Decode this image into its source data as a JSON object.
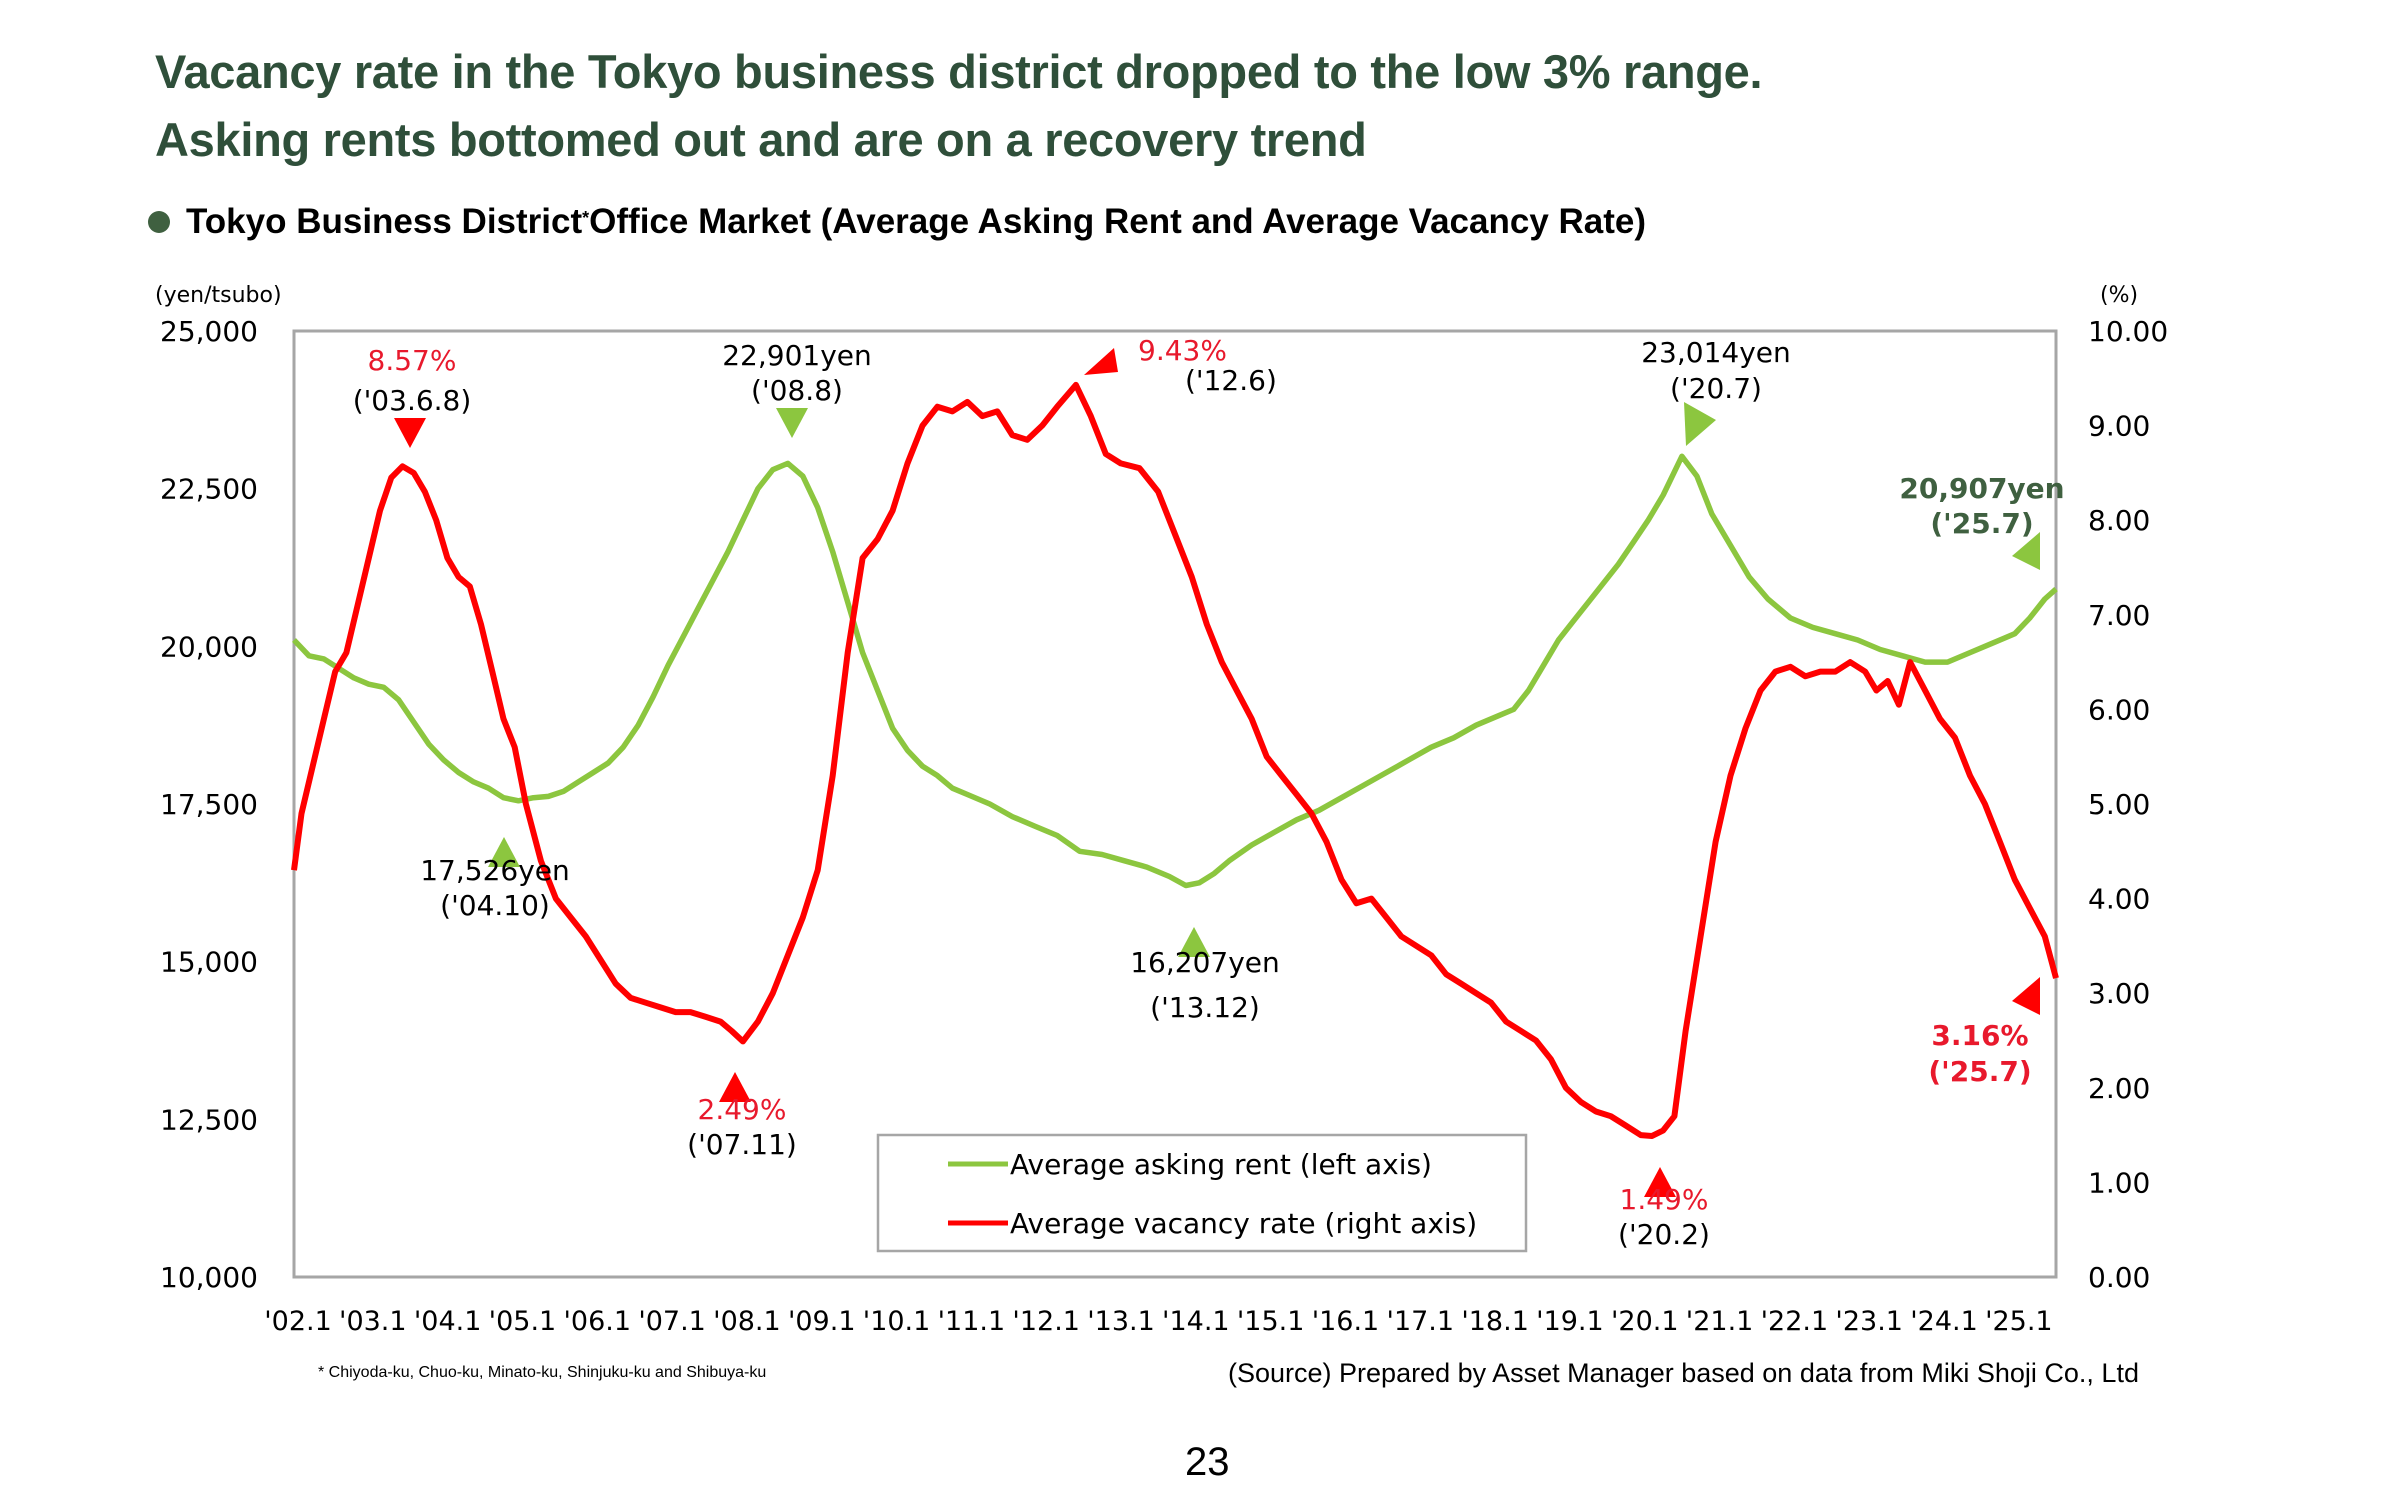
{
  "page": {
    "title_line1": "Vacancy rate in the Tokyo business district dropped to the low 3% range.",
    "title_line2": "Asking rents bottomed out and are on a recovery trend",
    "subtitle": "Tokyo Business District",
    "subtitle_mark": "*",
    "subtitle_rest": " Office Market (Average Asking Rent and Average Vacancy Rate)",
    "footnote": "* Chiyoda-ku, Chuo-ku, Minato-ku, Shinjuku-ku and Shibuya-ku",
    "source": "(Source) Prepared by Asset Manager based on data from Miki Shoji Co., Ltd",
    "page_number": "23",
    "colors": {
      "title": "#2f4f3a",
      "bullet": "#3f6040",
      "rent_line": "#8cc63f",
      "vacancy_line": "#ff0000",
      "rent_latest_label": "#3f6040",
      "vacancy_label": "#e8192c"
    }
  },
  "chart_data": {
    "type": "line",
    "title": "Tokyo Business District Office Market (Average Asking Rent and Average Vacancy Rate)",
    "xlabel": "",
    "y_left_label": "(yen/tsubo)",
    "y_right_label": "(%)",
    "y_left_lim": [
      10000,
      25000
    ],
    "y_right_lim": [
      0,
      10
    ],
    "y_left_ticks": [
      "25,000",
      "22,500",
      "20,000",
      "17,500",
      "15,000",
      "12,500",
      "10,000"
    ],
    "y_left_tick_values": [
      25000,
      22500,
      20000,
      17500,
      15000,
      12500,
      10000
    ],
    "y_right_ticks": [
      "10.00",
      "9.00",
      "8.00",
      "7.00",
      "6.00",
      "5.00",
      "4.00",
      "3.00",
      "2.00",
      "1.00",
      "0.00"
    ],
    "y_right_tick_values": [
      10,
      9,
      8,
      7,
      6,
      5,
      4,
      3,
      2,
      1,
      0
    ],
    "x_lim": [
      2002.0,
      2025.55
    ],
    "x_ticks": [
      "'02.1",
      "'03.1",
      "'04.1",
      "'05.1",
      "'06.1",
      "'07.1",
      "'08.1",
      "'09.1",
      "'10.1",
      "'11.1",
      "'12.1",
      "'13.1",
      "'14.1",
      "'15.1",
      "'16.1",
      "'17.1",
      "'18.1",
      "'19.1",
      "'20.1",
      "'21.1",
      "'22.1",
      "'23.1",
      "'24.1",
      "'25.1"
    ],
    "x_tick_values": [
      2002,
      2003,
      2004,
      2005,
      2006,
      2007,
      2008,
      2009,
      2010,
      2011,
      2012,
      2013,
      2014,
      2015,
      2016,
      2017,
      2018,
      2019,
      2020,
      2021,
      2022,
      2023,
      2024,
      2025
    ],
    "grid": false,
    "legend": {
      "placement": "bottom-center",
      "entries": [
        {
          "label": "Average asking rent (left axis)",
          "series": "rent"
        },
        {
          "label": "Average vacancy rate (right axis)",
          "series": "vacancy"
        }
      ]
    },
    "series": [
      {
        "name": "Average asking rent",
        "key": "rent",
        "axis": "left",
        "color": "#8cc63f",
        "x": [
          2002.0,
          2002.2,
          2002.4,
          2002.6,
          2002.8,
          2003.0,
          2003.2,
          2003.4,
          2003.6,
          2003.8,
          2004.0,
          2004.2,
          2004.4,
          2004.6,
          2004.8,
          2005.0,
          2005.2,
          2005.4,
          2005.6,
          2005.8,
          2006.0,
          2006.2,
          2006.4,
          2006.6,
          2006.8,
          2007.0,
          2007.2,
          2007.4,
          2007.6,
          2007.8,
          2008.0,
          2008.2,
          2008.4,
          2008.6,
          2008.8,
          2009.0,
          2009.2,
          2009.4,
          2009.6,
          2009.8,
          2010.0,
          2010.2,
          2010.4,
          2010.6,
          2010.8,
          2011.0,
          2011.3,
          2011.6,
          2011.9,
          2012.2,
          2012.5,
          2012.8,
          2013.1,
          2013.4,
          2013.7,
          2013.92,
          2014.1,
          2014.3,
          2014.5,
          2014.8,
          2015.1,
          2015.4,
          2015.7,
          2016.0,
          2016.3,
          2016.6,
          2016.9,
          2017.2,
          2017.5,
          2017.8,
          2018.1,
          2018.3,
          2018.5,
          2018.7,
          2018.9,
          2019.1,
          2019.3,
          2019.5,
          2019.7,
          2019.9,
          2020.1,
          2020.3,
          2020.55,
          2020.75,
          2020.95,
          2021.2,
          2021.45,
          2021.7,
          2022.0,
          2022.3,
          2022.6,
          2022.9,
          2023.2,
          2023.5,
          2023.8,
          2024.1,
          2024.4,
          2024.7,
          2025.0,
          2025.2,
          2025.4,
          2025.55
        ],
        "values": [
          20100,
          19850,
          19800,
          19650,
          19500,
          19400,
          19350,
          19150,
          18800,
          18450,
          18200,
          18000,
          17850,
          17750,
          17600,
          17550,
          17600,
          17620,
          17700,
          17850,
          18000,
          18150,
          18400,
          18750,
          19200,
          19700,
          20150,
          20600,
          21050,
          21500,
          22000,
          22500,
          22800,
          22901,
          22700,
          22200,
          21500,
          20700,
          19900,
          19300,
          18700,
          18350,
          18100,
          17950,
          17750,
          17650,
          17500,
          17300,
          17150,
          17000,
          16750,
          16700,
          16600,
          16500,
          16350,
          16207,
          16250,
          16400,
          16600,
          16850,
          17050,
          17250,
          17400,
          17600,
          17800,
          18000,
          18200,
          18400,
          18550,
          18750,
          18900,
          19000,
          19300,
          19700,
          20100,
          20400,
          20700,
          21000,
          21300,
          21650,
          22000,
          22400,
          23014,
          22700,
          22100,
          21600,
          21100,
          20750,
          20450,
          20300,
          20200,
          20100,
          19950,
          19850,
          19750,
          19750,
          19900,
          20050,
          20200,
          20450,
          20750,
          20907
        ]
      },
      {
        "name": "Average vacancy rate",
        "key": "vacancy",
        "axis": "right",
        "color": "#ff0000",
        "x": [
          2002.0,
          2002.1,
          2002.25,
          2002.4,
          2002.55,
          2002.7,
          2002.85,
          2003.0,
          2003.15,
          2003.3,
          2003.45,
          2003.6,
          2003.75,
          2003.9,
          2004.05,
          2004.2,
          2004.35,
          2004.5,
          2004.65,
          2004.8,
          2004.95,
          2005.1,
          2005.3,
          2005.5,
          2005.7,
          2005.9,
          2006.1,
          2006.3,
          2006.5,
          2006.7,
          2006.9,
          2007.1,
          2007.3,
          2007.5,
          2007.7,
          2007.85,
          2008.0,
          2008.2,
          2008.4,
          2008.6,
          2008.8,
          2009.0,
          2009.2,
          2009.4,
          2009.6,
          2009.8,
          2010.0,
          2010.2,
          2010.4,
          2010.6,
          2010.8,
          2011.0,
          2011.2,
          2011.4,
          2011.6,
          2011.8,
          2012.0,
          2012.2,
          2012.45,
          2012.65,
          2012.85,
          2013.05,
          2013.3,
          2013.55,
          2013.8,
          2014.0,
          2014.2,
          2014.4,
          2014.6,
          2014.8,
          2015.0,
          2015.2,
          2015.4,
          2015.6,
          2015.8,
          2016.0,
          2016.2,
          2016.4,
          2016.6,
          2016.8,
          2017.0,
          2017.2,
          2017.4,
          2017.6,
          2017.8,
          2018.0,
          2018.2,
          2018.4,
          2018.6,
          2018.8,
          2019.0,
          2019.2,
          2019.4,
          2019.6,
          2019.8,
          2020.0,
          2020.15,
          2020.3,
          2020.45,
          2020.6,
          2020.8,
          2021.0,
          2021.2,
          2021.4,
          2021.6,
          2021.8,
          2022.0,
          2022.2,
          2022.4,
          2022.6,
          2022.8,
          2023.0,
          2023.15,
          2023.3,
          2023.45,
          2023.6,
          2023.8,
          2024.0,
          2024.2,
          2024.4,
          2024.6,
          2024.8,
          2025.0,
          2025.2,
          2025.4,
          2025.55
        ],
        "values": [
          4.3,
          4.9,
          5.4,
          5.9,
          6.4,
          6.6,
          7.1,
          7.6,
          8.1,
          8.45,
          8.57,
          8.5,
          8.3,
          8.0,
          7.6,
          7.4,
          7.3,
          6.9,
          6.4,
          5.9,
          5.6,
          5.0,
          4.4,
          4.0,
          3.8,
          3.6,
          3.35,
          3.1,
          2.95,
          2.9,
          2.85,
          2.8,
          2.8,
          2.75,
          2.7,
          2.6,
          2.49,
          2.7,
          3.0,
          3.4,
          3.8,
          4.3,
          5.3,
          6.6,
          7.6,
          7.8,
          8.1,
          8.6,
          9.0,
          9.2,
          9.15,
          9.25,
          9.1,
          9.15,
          8.9,
          8.85,
          9.0,
          9.2,
          9.43,
          9.1,
          8.7,
          8.6,
          8.55,
          8.3,
          7.8,
          7.4,
          6.9,
          6.5,
          6.2,
          5.9,
          5.5,
          5.3,
          5.1,
          4.9,
          4.6,
          4.2,
          3.95,
          4.0,
          3.8,
          3.6,
          3.5,
          3.4,
          3.2,
          3.1,
          3.0,
          2.9,
          2.7,
          2.6,
          2.5,
          2.3,
          2.0,
          1.85,
          1.75,
          1.7,
          1.6,
          1.5,
          1.49,
          1.55,
          1.7,
          2.6,
          3.6,
          4.6,
          5.3,
          5.8,
          6.2,
          6.4,
          6.45,
          6.35,
          6.4,
          6.4,
          6.5,
          6.4,
          6.2,
          6.3,
          6.05,
          6.5,
          6.2,
          5.9,
          5.7,
          5.3,
          5.0,
          4.6,
          4.2,
          3.9,
          3.6,
          3.16
        ]
      }
    ],
    "annotations": [
      {
        "series": "vacancy",
        "x": 2003.45,
        "value": 8.57,
        "label": "8.57%",
        "date": "('03.6.8)",
        "marker": "down",
        "text_color": "red"
      },
      {
        "series": "rent",
        "x": 2004.8,
        "value": 17526,
        "label": "17,526yen",
        "date": "('04.10)",
        "marker": "up",
        "text_color": "black"
      },
      {
        "series": "vacancy",
        "x": 2007.85,
        "value": 2.49,
        "label": "2.49%",
        "date": "('07.11)",
        "marker": "up",
        "text_color": "red"
      },
      {
        "series": "rent",
        "x": 2008.6,
        "value": 22901,
        "label": "22,901yen",
        "date": "('08.8)",
        "marker": "down",
        "text_color": "black"
      },
      {
        "series": "vacancy",
        "x": 2012.45,
        "value": 9.43,
        "label": "9.43%",
        "date": "('12.6)",
        "marker": "up-left",
        "text_color": "red"
      },
      {
        "series": "rent",
        "x": 2013.92,
        "value": 16207,
        "label": "16,207yen",
        "date": "('13.12)",
        "marker": "up",
        "text_color": "black"
      },
      {
        "series": "vacancy",
        "x": 2020.15,
        "value": 1.49,
        "label": "1.49%",
        "date": "('20.2)",
        "marker": "up",
        "text_color": "red"
      },
      {
        "series": "rent",
        "x": 2020.55,
        "value": 23014,
        "label": "23,014yen",
        "date": "('20.7)",
        "marker": "down-right",
        "text_color": "black"
      },
      {
        "series": "rent",
        "x": 2025.55,
        "value": 20907,
        "label": "20,907yen",
        "date": "('25.7)",
        "marker": "right",
        "text_color": "darkgreen"
      },
      {
        "series": "vacancy",
        "x": 2025.55,
        "value": 3.16,
        "label": "3.16%",
        "date": "('25.7)",
        "marker": "right",
        "text_color": "red"
      }
    ]
  }
}
